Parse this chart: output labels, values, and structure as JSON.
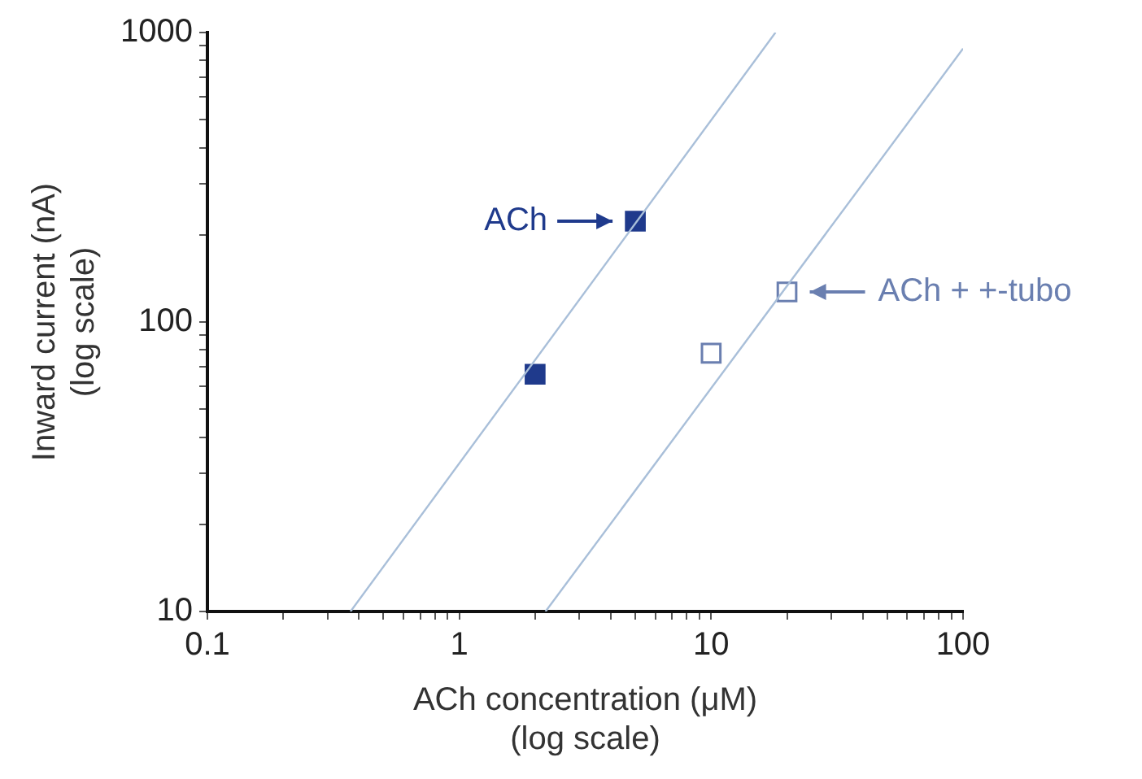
{
  "chart_data": {
    "type": "scatter",
    "xlabel": "ACh concentration (μM)\n(log scale)",
    "ylabel": "Inward current (nA)\n(log scale)",
    "log": "xy",
    "grid": false,
    "marker": "square",
    "xlim": [
      0.1,
      100
    ],
    "ylim": [
      10,
      1000
    ],
    "xticks": [
      {
        "value": 0.1,
        "label": "0.1"
      },
      {
        "value": 0.2,
        "label": null
      },
      {
        "value": 0.3,
        "label": null
      },
      {
        "value": 0.4,
        "label": null
      },
      {
        "value": 0.5,
        "label": null
      },
      {
        "value": 0.6,
        "label": null
      },
      {
        "value": 0.7,
        "label": null
      },
      {
        "value": 0.8,
        "label": null
      },
      {
        "value": 0.9,
        "label": null
      },
      1,
      {
        "value": 2,
        "label": null
      },
      {
        "value": 3,
        "label": null
      },
      {
        "value": 4,
        "label": null
      },
      {
        "value": 5,
        "label": null
      },
      {
        "value": 6,
        "label": null
      },
      {
        "value": 7,
        "label": null
      },
      {
        "value": 8,
        "label": null
      },
      {
        "value": 9,
        "label": null
      },
      10,
      {
        "value": 20,
        "label": null
      },
      {
        "value": 30,
        "label": null
      },
      {
        "value": 40,
        "label": null
      },
      {
        "value": 50,
        "label": null
      },
      {
        "value": 60,
        "label": null
      },
      {
        "value": 70,
        "label": null
      },
      {
        "value": 80,
        "label": null
      },
      {
        "value": 90,
        "label": null
      },
      100
    ],
    "yticks": [
      10,
      {
        "value": 20,
        "label": null
      },
      {
        "value": 30,
        "label": null
      },
      {
        "value": 40,
        "label": null
      },
      {
        "value": 50,
        "label": null
      },
      {
        "value": 60,
        "label": null
      },
      {
        "value": 70,
        "label": null
      },
      {
        "value": 80,
        "label": null
      },
      {
        "value": 90,
        "label": null
      },
      100,
      {
        "value": 200,
        "label": null
      },
      {
        "value": 300,
        "label": null
      },
      {
        "value": 400,
        "label": null
      },
      {
        "value": 500,
        "label": null
      },
      {
        "value": 600,
        "label": null
      },
      {
        "value": 700,
        "label": null
      },
      {
        "value": 800,
        "label": null
      },
      {
        "value": 900,
        "label": null
      },
      1000
    ],
    "series": [
      {
        "type": "line",
        "color": "#a9bfd9",
        "x": [
          0.37,
          18
        ],
        "values": [
          10,
          1000
        ],
        "marker": "none"
      },
      {
        "type": "line",
        "color": "#a9bfd9",
        "x": [
          2.2,
          100
        ],
        "values": [
          10,
          880
        ],
        "marker": "none"
      },
      {
        "name": "ACh",
        "color": "#1f3a8c",
        "x": [
          2,
          5
        ],
        "values": [
          66,
          223
        ]
      },
      {
        "name": "ACh + +-tubo",
        "color": "#6a7fb0",
        "x": [
          10,
          20
        ],
        "values": [
          78,
          127
        ]
      }
    ]
  }
}
